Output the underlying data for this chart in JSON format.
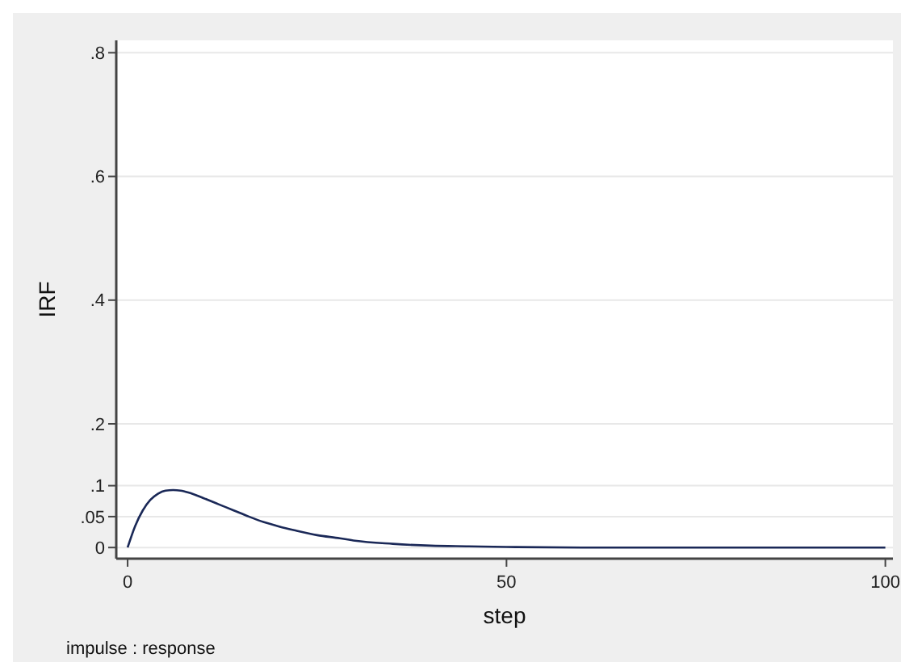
{
  "chart_data": {
    "type": "line",
    "xlabel": "step",
    "ylabel": "IRF",
    "annotations": [
      "impulse : response"
    ],
    "x": [
      0,
      1,
      2,
      3,
      4,
      5,
      6,
      7,
      8,
      10,
      12,
      14,
      16,
      18,
      20,
      22,
      25,
      28,
      30,
      35,
      40,
      45,
      50,
      60,
      70,
      80,
      90,
      100
    ],
    "series": [
      {
        "color": "#1a2857",
        "values": [
          0,
          0.035,
          0.06,
          0.077,
          0.087,
          0.092,
          0.093,
          0.092,
          0.089,
          0.08,
          0.07,
          0.06,
          0.05,
          0.041,
          0.034,
          0.028,
          0.02,
          0.015,
          0.011,
          0.006,
          0.003,
          0.002,
          0.001,
          0,
          0,
          0,
          0,
          0
        ]
      }
    ],
    "xlim": [
      -1.5,
      101
    ],
    "ylim": [
      -0.018,
      0.82
    ],
    "xticks": [
      0,
      50,
      100
    ],
    "yticks": [
      0,
      {
        "value": 0.05,
        "label": ".05"
      },
      {
        "value": 0.1,
        "label": ".1"
      },
      {
        "value": 0.2,
        "label": ".2"
      },
      {
        "value": 0.4,
        "label": ".4"
      },
      {
        "value": 0.6,
        "label": ".6"
      },
      {
        "value": 0.8,
        "label": ".8"
      }
    ],
    "grid": "y",
    "line_style": "solid"
  }
}
